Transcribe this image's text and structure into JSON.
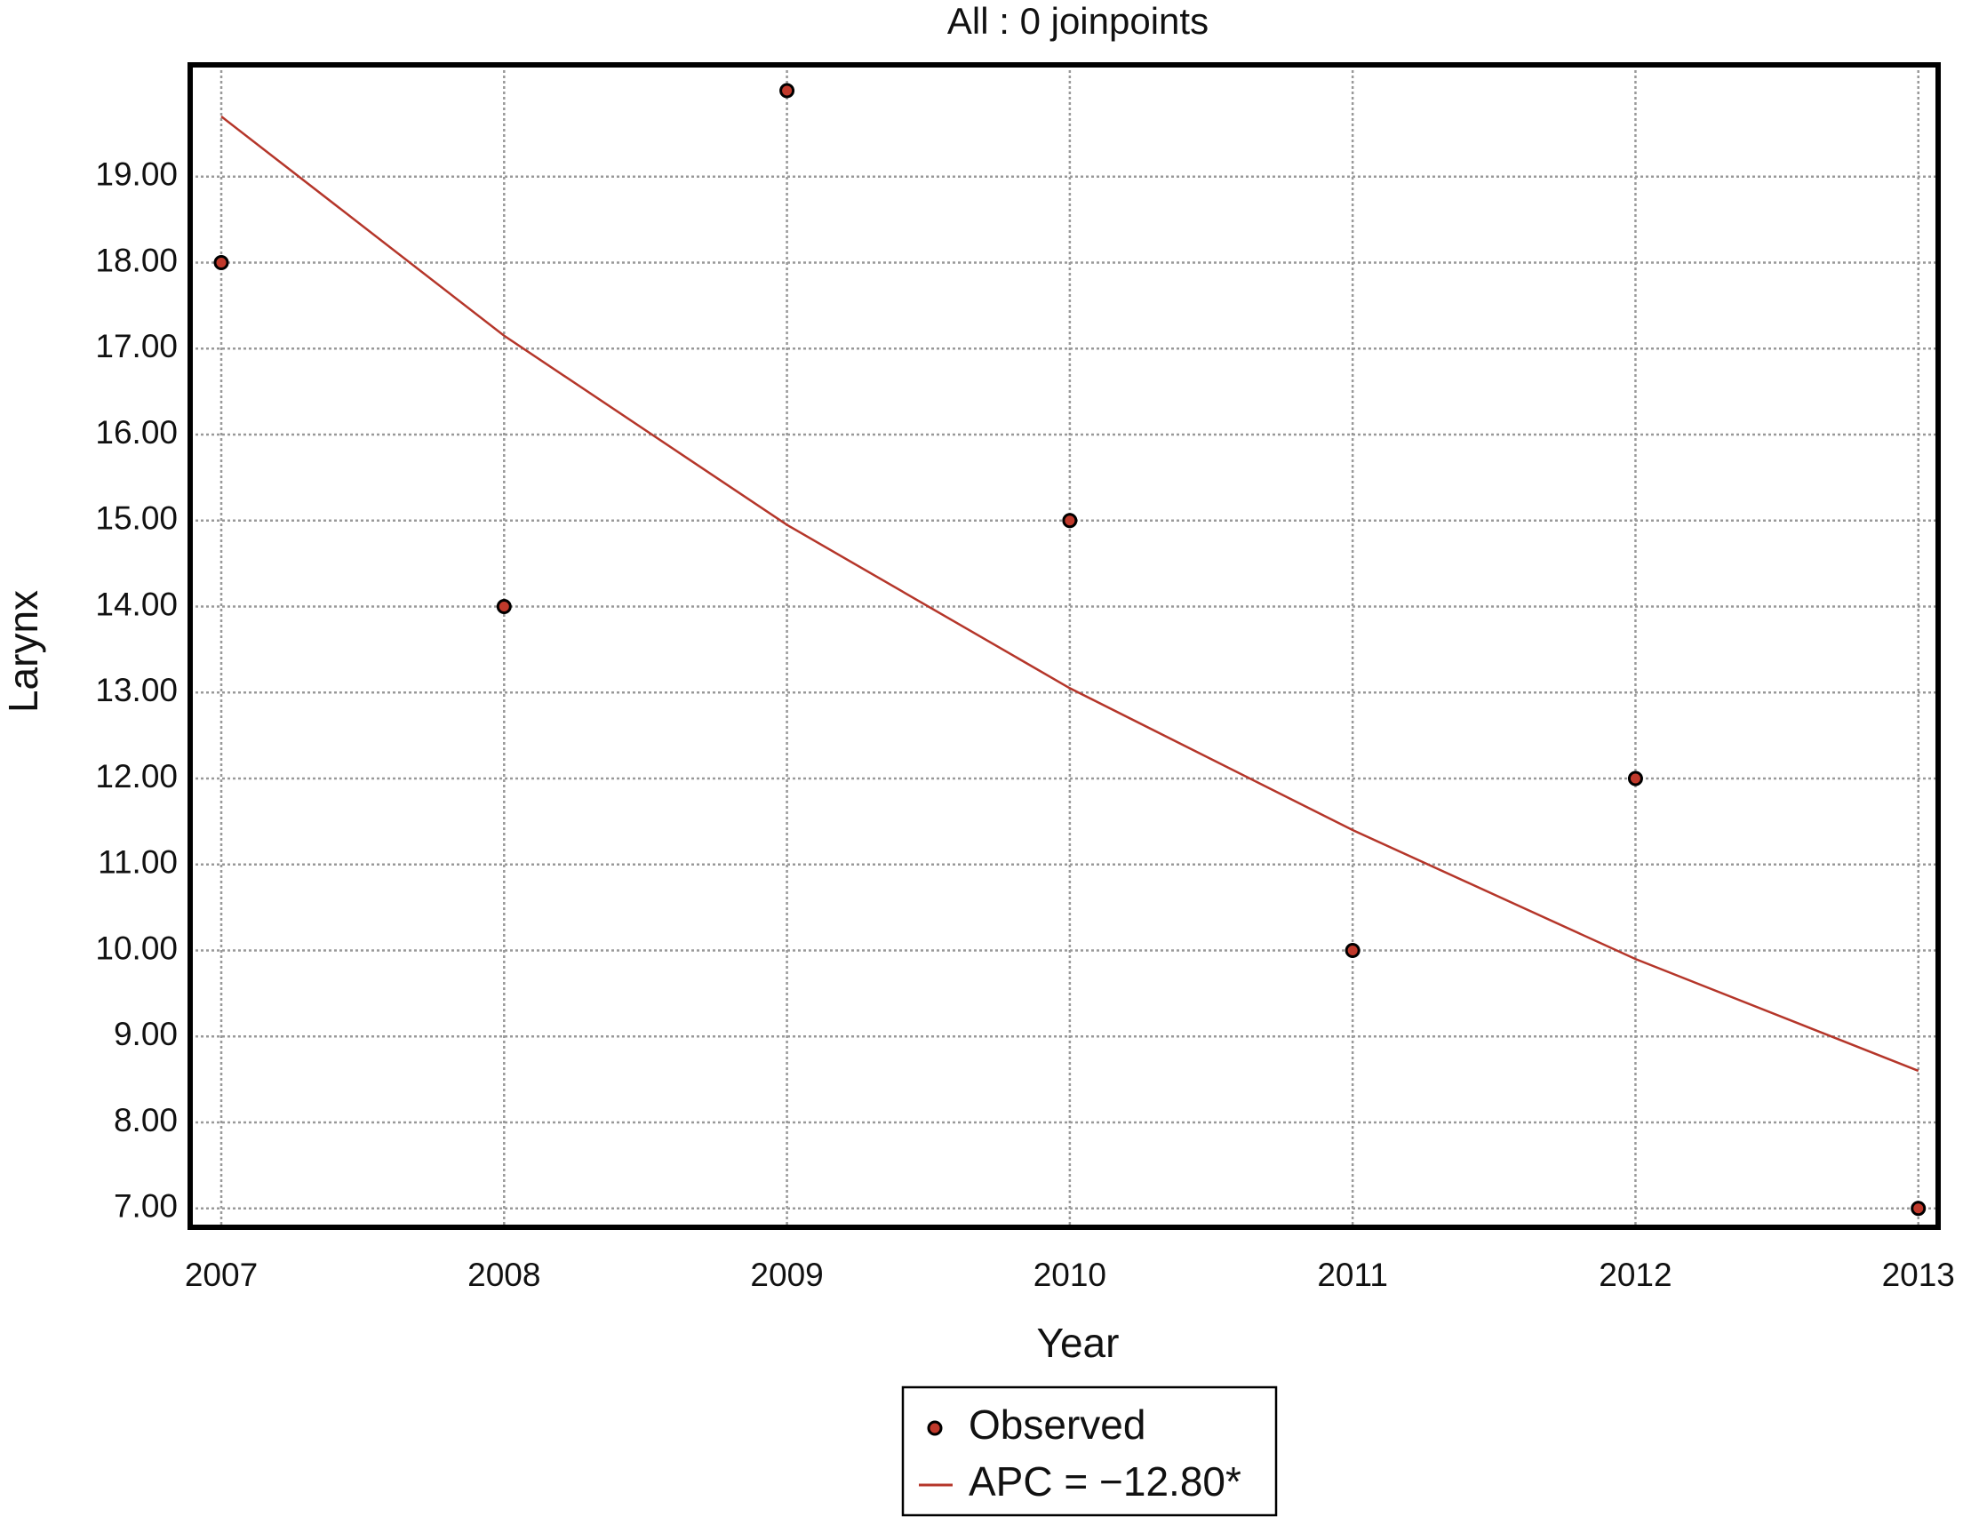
{
  "chart_data": {
    "type": "scatter",
    "title": "All : 0 joinpoints",
    "x_label": "Year",
    "y_label": "Larynx",
    "x": [
      2007,
      2008,
      2009,
      2010,
      2011,
      2012,
      2013
    ],
    "series": [
      {
        "name": "Observed",
        "type": "scatter",
        "color": "#c0392b",
        "values": [
          18,
          14,
          20,
          15,
          10,
          12,
          7
        ]
      },
      {
        "name": "APC = −12.80*",
        "type": "line",
        "color": "#b5362a",
        "values": [
          19.7,
          17.15,
          14.95,
          13.05,
          11.4,
          9.9,
          8.6
        ]
      }
    ],
    "xlim": [
      2006.89,
      2013.07
    ],
    "ylim": [
      6.78,
      20.3
    ],
    "xticks": [
      2007,
      2008,
      2009,
      2010,
      2011,
      2012,
      2013
    ],
    "yticks": [
      {
        "value": 7,
        "label": "7.00"
      },
      {
        "value": 8,
        "label": "8.00"
      },
      {
        "value": 9,
        "label": "9.00"
      },
      {
        "value": 10,
        "label": "10.00"
      },
      {
        "value": 11,
        "label": "11.00"
      },
      {
        "value": 12,
        "label": "12.00"
      },
      {
        "value": 13,
        "label": "13.00"
      },
      {
        "value": 14,
        "label": "14.00"
      },
      {
        "value": 15,
        "label": "15.00"
      },
      {
        "value": 16,
        "label": "16.00"
      },
      {
        "value": 17,
        "label": "17.00"
      },
      {
        "value": 18,
        "label": "18.00"
      },
      {
        "value": 19,
        "label": "19.00"
      }
    ],
    "grid": true
  }
}
